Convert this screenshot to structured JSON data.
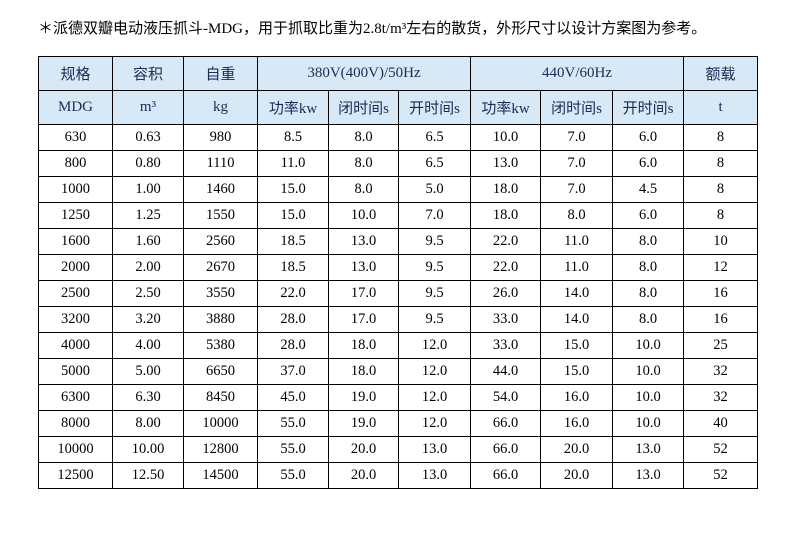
{
  "note": "＊派德双瓣电动液压抓斗-MDG，用于抓取比重为2.8t/m³左右的散货，外形尺寸以设计方案图为参考。",
  "colors": {
    "header_bg": "#d7e8f6",
    "header_text": "#1c2c54",
    "border": "#000000"
  },
  "table": {
    "header_top": {
      "spec": "规格",
      "capacity": "容积",
      "weight": "自重",
      "v380": "380V(400V)/50Hz",
      "v440": "440V/60Hz",
      "load": "额载"
    },
    "header_sub": {
      "spec": "MDG",
      "capacity": "m³",
      "weight": "kg",
      "power380": "功率kw",
      "close380": "闭时间s",
      "open380": "开时间s",
      "power440": "功率kw",
      "close440": "闭时间s",
      "open440": "开时间s",
      "load": "t"
    },
    "rows": [
      [
        "630",
        "0.63",
        "980",
        "8.5",
        "8.0",
        "6.5",
        "10.0",
        "7.0",
        "6.0",
        "8"
      ],
      [
        "800",
        "0.80",
        "1110",
        "11.0",
        "8.0",
        "6.5",
        "13.0",
        "7.0",
        "6.0",
        "8"
      ],
      [
        "1000",
        "1.00",
        "1460",
        "15.0",
        "8.0",
        "5.0",
        "18.0",
        "7.0",
        "4.5",
        "8"
      ],
      [
        "1250",
        "1.25",
        "1550",
        "15.0",
        "10.0",
        "7.0",
        "18.0",
        "8.0",
        "6.0",
        "8"
      ],
      [
        "1600",
        "1.60",
        "2560",
        "18.5",
        "13.0",
        "9.5",
        "22.0",
        "11.0",
        "8.0",
        "10"
      ],
      [
        "2000",
        "2.00",
        "2670",
        "18.5",
        "13.0",
        "9.5",
        "22.0",
        "11.0",
        "8.0",
        "12"
      ],
      [
        "2500",
        "2.50",
        "3550",
        "22.0",
        "17.0",
        "9.5",
        "26.0",
        "14.0",
        "8.0",
        "16"
      ],
      [
        "3200",
        "3.20",
        "3880",
        "28.0",
        "17.0",
        "9.5",
        "33.0",
        "14.0",
        "8.0",
        "16"
      ],
      [
        "4000",
        "4.00",
        "5380",
        "28.0",
        "18.0",
        "12.0",
        "33.0",
        "15.0",
        "10.0",
        "25"
      ],
      [
        "5000",
        "5.00",
        "6650",
        "37.0",
        "18.0",
        "12.0",
        "44.0",
        "15.0",
        "10.0",
        "32"
      ],
      [
        "6300",
        "6.30",
        "8450",
        "45.0",
        "19.0",
        "12.0",
        "54.0",
        "16.0",
        "10.0",
        "32"
      ],
      [
        "8000",
        "8.00",
        "10000",
        "55.0",
        "19.0",
        "12.0",
        "66.0",
        "16.0",
        "10.0",
        "40"
      ],
      [
        "10000",
        "10.00",
        "12800",
        "55.0",
        "20.0",
        "13.0",
        "66.0",
        "20.0",
        "13.0",
        "52"
      ],
      [
        "12500",
        "12.50",
        "14500",
        "55.0",
        "20.0",
        "13.0",
        "66.0",
        "20.0",
        "13.0",
        "52"
      ]
    ]
  }
}
